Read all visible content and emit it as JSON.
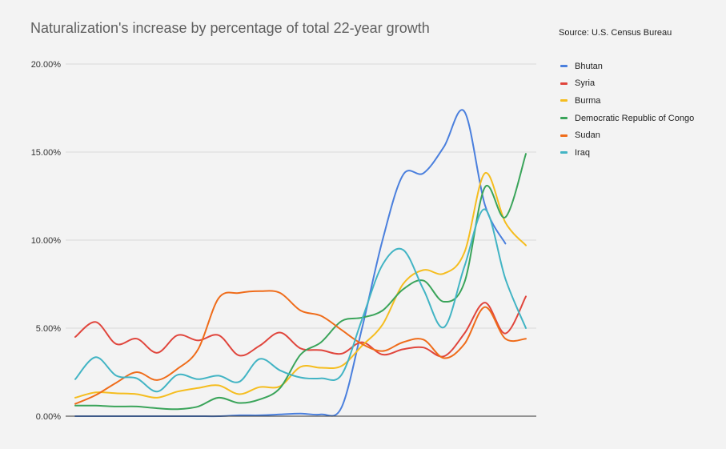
{
  "chart_data": {
    "type": "line",
    "title": "Naturalization's increase by percentage of total 22-year growth",
    "source": "Source: U.S. Census Bureau",
    "xlabel": "",
    "ylabel": "",
    "ylim": [
      0,
      20
    ],
    "y_ticks": [
      {
        "value": 0,
        "label": "0.00%"
      },
      {
        "value": 5,
        "label": "5.00%"
      },
      {
        "value": 10,
        "label": "10.00%"
      },
      {
        "value": 15,
        "label": "15.00%"
      },
      {
        "value": 20,
        "label": "20.00%"
      }
    ],
    "x": [
      1,
      2,
      3,
      4,
      5,
      6,
      7,
      8,
      9,
      10,
      11,
      12,
      13,
      14,
      15,
      16,
      17,
      18,
      19,
      20,
      21,
      22,
      23
    ],
    "grid": true,
    "legend_position": "right",
    "series": [
      {
        "name": "Bhutan",
        "color": "#4a7fdd",
        "values": [
          0.0,
          0.0,
          0.0,
          0.0,
          0.0,
          0.0,
          0.0,
          0.0,
          0.05,
          0.05,
          0.1,
          0.15,
          0.1,
          0.5,
          5.0,
          10.0,
          13.7,
          13.8,
          15.3,
          17.3,
          12.0,
          9.8,
          null
        ]
      },
      {
        "name": "Syria",
        "color": "#e0453c",
        "values": [
          4.5,
          5.35,
          4.1,
          4.4,
          3.6,
          4.6,
          4.3,
          4.6,
          3.45,
          4.0,
          4.75,
          3.85,
          3.75,
          3.55,
          4.2,
          3.5,
          3.8,
          3.9,
          3.4,
          4.7,
          6.45,
          4.7,
          6.8
        ]
      },
      {
        "name": "Burma",
        "color": "#f5bd1f",
        "values": [
          1.05,
          1.35,
          1.3,
          1.25,
          1.05,
          1.4,
          1.6,
          1.75,
          1.25,
          1.65,
          1.7,
          2.8,
          2.75,
          2.85,
          4.0,
          5.2,
          7.5,
          8.3,
          8.1,
          9.3,
          13.8,
          11.0,
          9.7
        ]
      },
      {
        "name": "Democratic Republic of Congo",
        "color": "#3aa45a",
        "values": [
          0.6,
          0.6,
          0.55,
          0.55,
          0.45,
          0.4,
          0.55,
          1.05,
          0.75,
          0.95,
          1.6,
          3.5,
          4.2,
          5.4,
          5.6,
          6.0,
          7.2,
          7.7,
          6.5,
          7.6,
          13.0,
          11.3,
          14.9
        ]
      },
      {
        "name": "Sudan",
        "color": "#ef6c1a",
        "values": [
          0.7,
          1.2,
          1.9,
          2.5,
          2.05,
          2.7,
          3.8,
          6.7,
          7.0,
          7.1,
          7.0,
          6.0,
          5.7,
          4.9,
          4.1,
          3.7,
          4.2,
          4.35,
          3.3,
          4.1,
          6.2,
          4.4,
          4.4
        ]
      },
      {
        "name": "Iraq",
        "color": "#42b4c4",
        "values": [
          2.1,
          3.35,
          2.3,
          2.15,
          1.4,
          2.35,
          2.1,
          2.3,
          1.95,
          3.25,
          2.6,
          2.2,
          2.15,
          2.35,
          5.5,
          8.6,
          9.45,
          7.2,
          5.05,
          8.5,
          11.75,
          7.8,
          5.0
        ]
      }
    ]
  }
}
